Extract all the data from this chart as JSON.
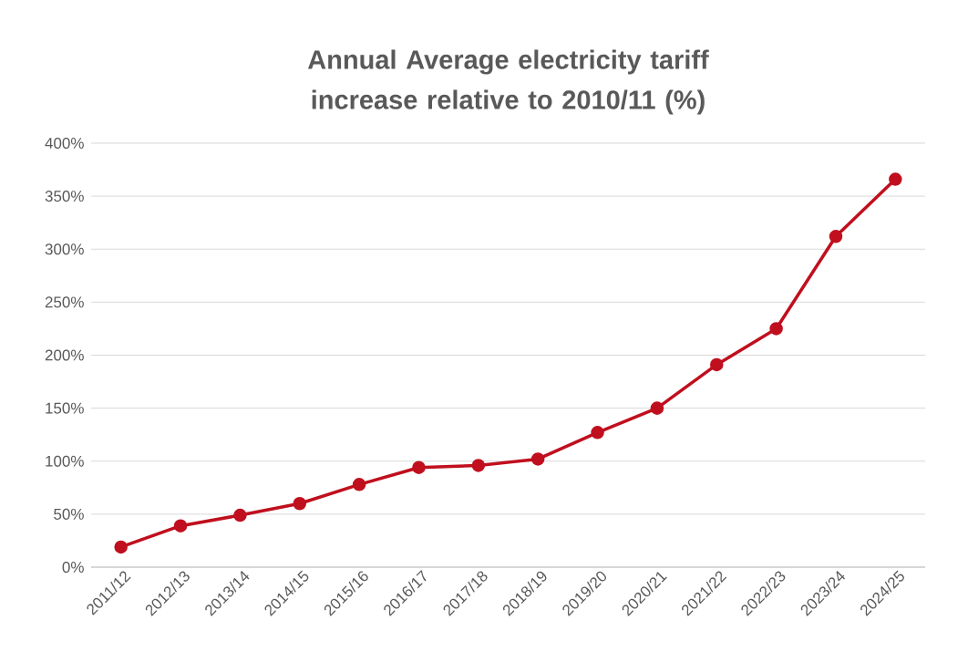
{
  "chart_data": {
    "type": "line",
    "title": "Annual Average electricity tariff increase relative to 2010/11 (%)",
    "categories": [
      "2011/12",
      "2012/13",
      "2013/14",
      "2014/15",
      "2015/16",
      "2016/17",
      "2017/18",
      "2018/19",
      "2019/20",
      "2020/21",
      "2021/22",
      "2022/23",
      "2023/24",
      "2024/25"
    ],
    "values": [
      19,
      39,
      49,
      60,
      78,
      94,
      96,
      102,
      127,
      150,
      191,
      225,
      312,
      366
    ],
    "color": "#c00f1e",
    "ylim": [
      0,
      400
    ],
    "yticks": [
      {
        "value": 0,
        "label": "0%"
      },
      {
        "value": 50,
        "label": "50%"
      },
      {
        "value": 100,
        "label": "100%"
      },
      {
        "value": 150,
        "label": "150%"
      },
      {
        "value": 200,
        "label": "200%"
      },
      {
        "value": 250,
        "label": "250%"
      },
      {
        "value": 300,
        "label": "300%"
      },
      {
        "value": 350,
        "label": "350%"
      },
      {
        "value": 400,
        "label": "400%"
      }
    ],
    "grid": "y",
    "marker": "circle",
    "line_style": "solid"
  }
}
